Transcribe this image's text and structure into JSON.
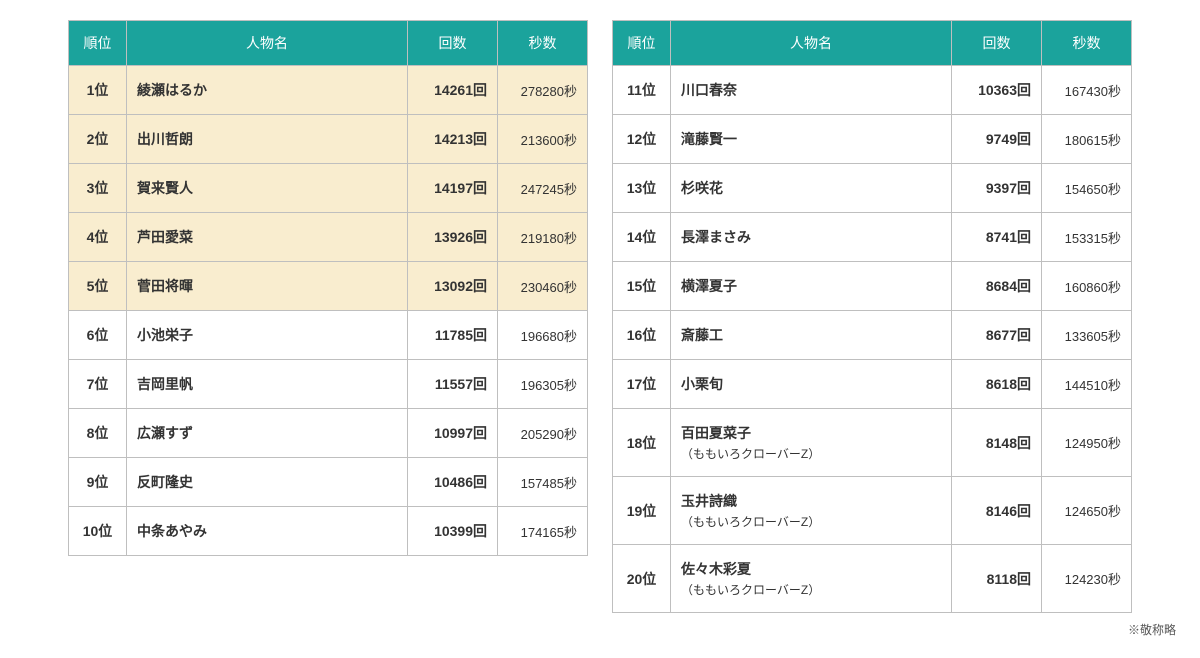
{
  "columns": {
    "rank": "順位",
    "name": "人物名",
    "count": "回数",
    "seconds": "秒数"
  },
  "units": {
    "rank_suffix": "位",
    "count_suffix": "回",
    "seconds_suffix": "秒"
  },
  "footnote": "※敬称略",
  "highlight_top_n": 5,
  "colors": {
    "header_bg": "#1ba39c",
    "header_fg": "#ffffff",
    "border": "#bfbfbf",
    "highlight_bg": "#f9edcf",
    "row_bg": "#ffffff"
  },
  "left": [
    {
      "rank": 1,
      "name": "綾瀬はるか",
      "count": 14261,
      "seconds": 278280
    },
    {
      "rank": 2,
      "name": "出川哲朗",
      "count": 14213,
      "seconds": 213600
    },
    {
      "rank": 3,
      "name": "賀来賢人",
      "count": 14197,
      "seconds": 247245
    },
    {
      "rank": 4,
      "name": "芦田愛菜",
      "count": 13926,
      "seconds": 219180
    },
    {
      "rank": 5,
      "name": "菅田将暉",
      "count": 13092,
      "seconds": 230460
    },
    {
      "rank": 6,
      "name": "小池栄子",
      "count": 11785,
      "seconds": 196680
    },
    {
      "rank": 7,
      "name": "吉岡里帆",
      "count": 11557,
      "seconds": 196305
    },
    {
      "rank": 8,
      "name": "広瀬すず",
      "count": 10997,
      "seconds": 205290
    },
    {
      "rank": 9,
      "name": "反町隆史",
      "count": 10486,
      "seconds": 157485
    },
    {
      "rank": 10,
      "name": "中条あやみ",
      "count": 10399,
      "seconds": 174165
    }
  ],
  "right": [
    {
      "rank": 11,
      "name": "川口春奈",
      "count": 10363,
      "seconds": 167430
    },
    {
      "rank": 12,
      "name": "滝藤賢一",
      "count": 9749,
      "seconds": 180615
    },
    {
      "rank": 13,
      "name": "杉咲花",
      "count": 9397,
      "seconds": 154650
    },
    {
      "rank": 14,
      "name": "長澤まさみ",
      "count": 8741,
      "seconds": 153315
    },
    {
      "rank": 15,
      "name": "横澤夏子",
      "count": 8684,
      "seconds": 160860
    },
    {
      "rank": 16,
      "name": "斎藤工",
      "count": 8677,
      "seconds": 133605
    },
    {
      "rank": 17,
      "name": "小栗旬",
      "count": 8618,
      "seconds": 144510
    },
    {
      "rank": 18,
      "name": "百田夏菜子",
      "sub": "（ももいろクローバーZ）",
      "count": 8148,
      "seconds": 124950
    },
    {
      "rank": 19,
      "name": "玉井詩織",
      "sub": "（ももいろクローバーZ）",
      "count": 8146,
      "seconds": 124650
    },
    {
      "rank": 20,
      "name": "佐々木彩夏",
      "sub": "（ももいろクローバーZ）",
      "count": 8118,
      "seconds": 124230
    }
  ]
}
